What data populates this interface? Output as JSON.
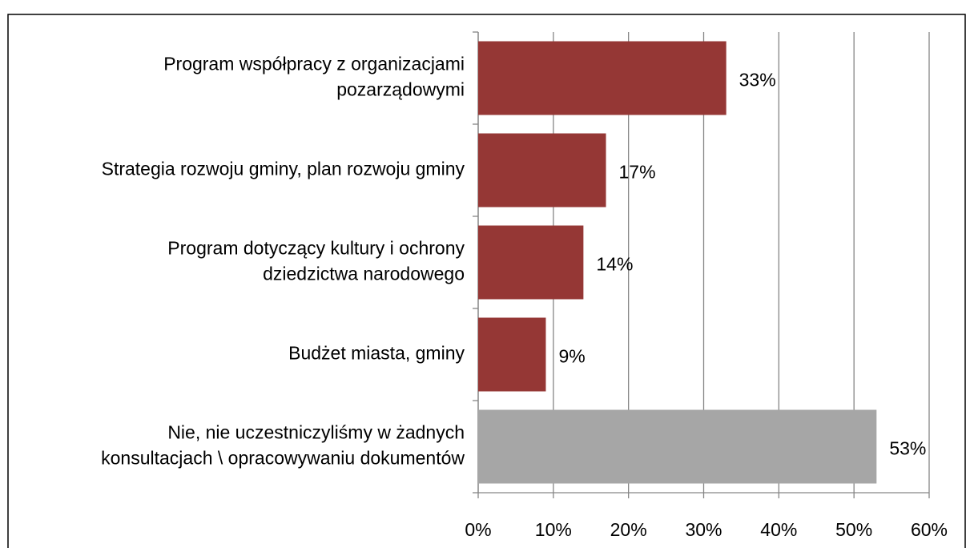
{
  "chart_data": {
    "type": "bar",
    "orientation": "horizontal",
    "categories": [
      [
        "Program współpracy z organizacjami",
        "pozarządowymi"
      ],
      [
        "Strategia rozwoju gminy, plan rozwoju gminy"
      ],
      [
        "Program dotyczący kultury i ochrony",
        "dziedzictwa narodowego"
      ],
      [
        "Budżet miasta, gminy"
      ],
      [
        "Nie, nie uczestniczyliśmy w żadnych",
        "konsultacjach \\ opracowywaniu dokumentów"
      ]
    ],
    "values": [
      33,
      17,
      14,
      9,
      53
    ],
    "value_labels": [
      "33%",
      "17%",
      "14%",
      "9%",
      "53%"
    ],
    "colors": [
      "#953735",
      "#953735",
      "#953735",
      "#953735",
      "#a6a6a6"
    ],
    "xlim": [
      0,
      60
    ],
    "xticks": [
      {
        "value": 0,
        "label": "0%"
      },
      {
        "value": 10,
        "label": "10%"
      },
      {
        "value": 20,
        "label": "20%"
      },
      {
        "value": 30,
        "label": "30%"
      },
      {
        "value": 40,
        "label": "40%"
      },
      {
        "value": 50,
        "label": "50%"
      },
      {
        "value": 60,
        "label": "60%"
      }
    ],
    "grid": true
  }
}
